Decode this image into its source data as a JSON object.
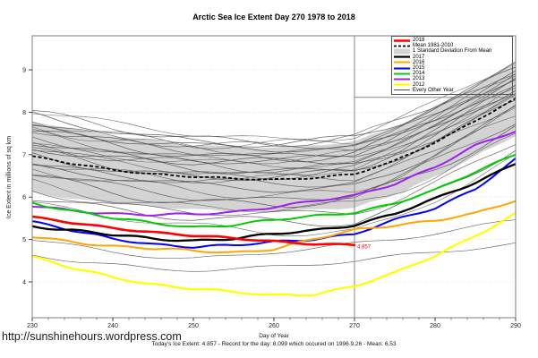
{
  "title": "Arctic Sea Ice Extent Day 270 1978 to 2018",
  "footer": {
    "xlabel": "Day of Year",
    "stats": "Today's Ice Extent: 4.857  - Record for the day: 8.099 which occured on 1996.9.26  - Mean: 6.53",
    "url": "http://sunshinehours.wordpress.com"
  },
  "legend": {
    "items": [
      {
        "label": "2018",
        "type": "line",
        "color": "#ff0000",
        "lw": 2.6
      },
      {
        "label": "Mean 1981-2010",
        "type": "dashed",
        "color": "#000000",
        "lw": 1.8
      },
      {
        "label": "1 Standard Deviation From Mean",
        "type": "box",
        "color": "#d3d3d3",
        "lw": 0
      },
      {
        "label": "2017",
        "type": "line",
        "color": "#000000",
        "lw": 2.3
      },
      {
        "label": "2016",
        "type": "line",
        "color": "#ffa500",
        "lw": 2
      },
      {
        "label": "2015",
        "type": "line",
        "color": "#0000ff",
        "lw": 2
      },
      {
        "label": "2014",
        "type": "line",
        "color": "#00cc00",
        "lw": 2
      },
      {
        "label": "2013",
        "type": "line",
        "color": "#a020f0",
        "lw": 2
      },
      {
        "label": "2012",
        "type": "line",
        "color": "#ffff00",
        "lw": 2.2
      },
      {
        "label": "Every Other Year",
        "type": "line",
        "color": "#4a4a4a",
        "lw": 0.7
      }
    ]
  },
  "chart_data": {
    "type": "line",
    "title": "Arctic Sea Ice Extent Day 270 1978 to 2018",
    "xlabel": "Day of Year",
    "ylabel": "Ice Extent in millions of sq km",
    "xlim": [
      230,
      290
    ],
    "ylim": [
      3.2,
      9.8
    ],
    "xticks": [
      230,
      240,
      250,
      260,
      270,
      280,
      290
    ],
    "minor_xtick_step": 2,
    "yticks": [
      4,
      5,
      6,
      7,
      8,
      9
    ],
    "grid": "dotted-horizontal",
    "legend_position": "top-right",
    "x_control": [
      230,
      235,
      240,
      245,
      250,
      255,
      260,
      265,
      270,
      275,
      280,
      285,
      290
    ],
    "mean_1981_2010": {
      "name": "Mean 1981-2010",
      "color": "#000000",
      "style": "dashed",
      "width": 1.8,
      "values": [
        6.95,
        6.78,
        6.65,
        6.55,
        6.47,
        6.43,
        6.42,
        6.46,
        6.53,
        6.85,
        7.3,
        7.8,
        8.3
      ]
    },
    "std_band": {
      "name": "1 Standard Deviation From Mean",
      "color": "#d3d3d3",
      "sd": [
        0.85,
        0.82,
        0.8,
        0.78,
        0.76,
        0.75,
        0.75,
        0.76,
        0.78,
        0.8,
        0.82,
        0.84,
        0.85
      ]
    },
    "series": [
      {
        "name": "2018",
        "color": "#ff0000",
        "width": 2.6,
        "x": [
          230,
          235,
          240,
          245,
          250,
          255,
          260,
          265,
          270
        ],
        "values": [
          5.52,
          5.38,
          5.28,
          5.18,
          5.08,
          5.02,
          4.97,
          4.9,
          4.857
        ]
      },
      {
        "name": "2017",
        "color": "#000000",
        "width": 2.3,
        "values": [
          5.32,
          5.22,
          5.1,
          5.02,
          4.98,
          5.02,
          5.12,
          5.22,
          5.35,
          5.6,
          5.95,
          6.35,
          6.8
        ]
      },
      {
        "name": "2016",
        "color": "#ffa500",
        "width": 2,
        "values": [
          5.06,
          4.95,
          4.85,
          4.78,
          4.73,
          4.7,
          4.78,
          5.0,
          5.22,
          5.35,
          5.45,
          5.6,
          5.92
        ]
      },
      {
        "name": "2015",
        "color": "#0000ff",
        "width": 2,
        "values": [
          5.42,
          5.2,
          5.02,
          4.9,
          4.82,
          4.85,
          4.95,
          5.02,
          5.12,
          5.45,
          5.75,
          6.2,
          6.88
        ]
      },
      {
        "name": "2014",
        "color": "#00cc00",
        "width": 2,
        "values": [
          5.87,
          5.68,
          5.5,
          5.38,
          5.3,
          5.35,
          5.45,
          5.55,
          5.65,
          5.85,
          6.15,
          6.6,
          7.02
        ]
      },
      {
        "name": "2013",
        "color": "#a020f0",
        "width": 2,
        "values": [
          5.78,
          5.68,
          5.62,
          5.58,
          5.58,
          5.65,
          5.78,
          5.9,
          6.02,
          6.32,
          6.72,
          7.2,
          7.55
        ]
      },
      {
        "name": "2012",
        "color": "#ffff00",
        "width": 2.2,
        "values": [
          4.6,
          4.32,
          4.1,
          3.95,
          3.85,
          3.75,
          3.68,
          3.72,
          3.9,
          4.2,
          4.62,
          5.1,
          5.6
        ]
      }
    ],
    "background_years": {
      "name": "Every Other Year",
      "color": "#4a4a4a",
      "offsets_from_mean": [
        1.08,
        1.0,
        0.95,
        0.88,
        0.82,
        0.75,
        0.7,
        0.64,
        0.58,
        0.52,
        0.46,
        0.4,
        0.34,
        0.28,
        0.22,
        0.16,
        0.1,
        0.04,
        -0.04,
        -0.12,
        -0.2,
        -0.3,
        -0.4,
        -0.5,
        -0.62,
        -0.75,
        -0.9,
        -1.08
      ],
      "pos_spread": -0.2,
      "neg_spread": 0.3,
      "low_years": [
        [
          4.65,
          4.5,
          4.4,
          4.3,
          4.28,
          4.3,
          4.35,
          4.42,
          4.5,
          4.6,
          4.7,
          4.8,
          4.9
        ],
        [
          5.0,
          4.85,
          4.7,
          4.6,
          4.55,
          4.6,
          4.7,
          4.8,
          4.9,
          5.0,
          5.15,
          5.3,
          5.45
        ]
      ]
    },
    "reference_lines": {
      "vertical_at_day": 270,
      "horizontal_at_value": 8.35,
      "horizontal_from_day": 270,
      "color": "#888888"
    },
    "annotations": [
      {
        "text": "4.857",
        "day": 270,
        "value": 4.857,
        "color": "#ff0000"
      }
    ]
  }
}
